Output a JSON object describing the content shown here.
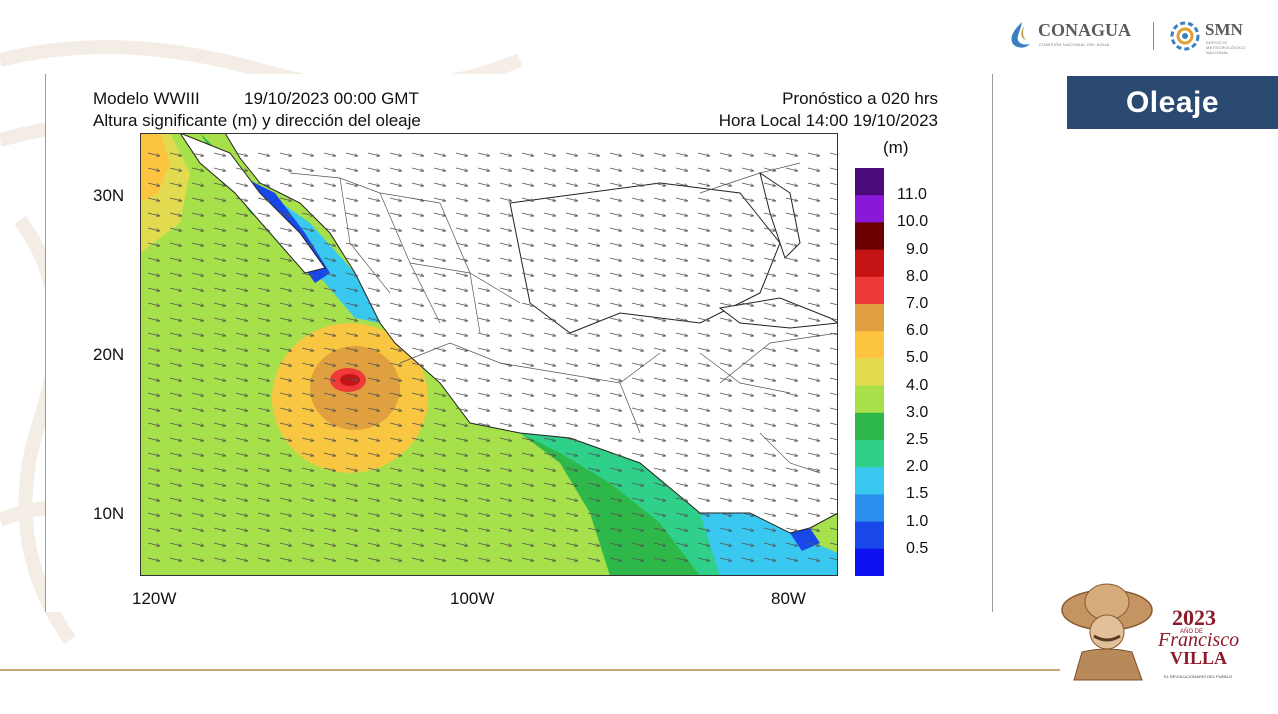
{
  "logos": {
    "conagua": "CONAGUA",
    "conagua_sub": "COMISIÓN NACIONAL DEL AGUA",
    "smn": "SMN",
    "smn_sub_1": "SERVICIO",
    "smn_sub_2": "METEOROLÓGICO",
    "smn_sub_3": "NACIONAL"
  },
  "badge": {
    "label": "Oleaje"
  },
  "figure": {
    "model": "Modelo WWIII",
    "datetime": "19/10/2023 00:00 GMT",
    "subtitle": "Altura significante (m) y dirección del oleaje",
    "forecast": "Pronóstico a 020 hrs",
    "local_time": "Hora Local 14:00 19/10/2023",
    "unit": "(m)"
  },
  "map": {
    "lat_labels": [
      "30N",
      "20N",
      "10N"
    ],
    "lon_labels": [
      "120W",
      "100W",
      "80W"
    ],
    "extent": {
      "lon": [
        -120,
        -77
      ],
      "lat": [
        6,
        33
      ]
    }
  },
  "colorbar": {
    "ticks": [
      "11.0",
      "10.0",
      "9.0",
      "8.0",
      "7.0",
      "6.0",
      "5.0",
      "4.0",
      "3.0",
      "2.5",
      "2.0",
      "1.5",
      "1.0",
      "0.5"
    ],
    "colors": [
      "#4b0a7a",
      "#8a18d8",
      "#6b0000",
      "#c41414",
      "#ef3a3a",
      "#e0a040",
      "#fcc43f",
      "#e2db4f",
      "#a8e04a",
      "#2fb84a",
      "#2fd08a",
      "#39c8f0",
      "#2a90f0",
      "#1848e8",
      "#0d10f0"
    ]
  },
  "emblem": {
    "year": "2023",
    "year_sub": "AÑO DE",
    "name_1": "Francisco",
    "name_2": "VILLA",
    "motto": "EL REVOLUCIONARIO DEL PUEBLO"
  }
}
